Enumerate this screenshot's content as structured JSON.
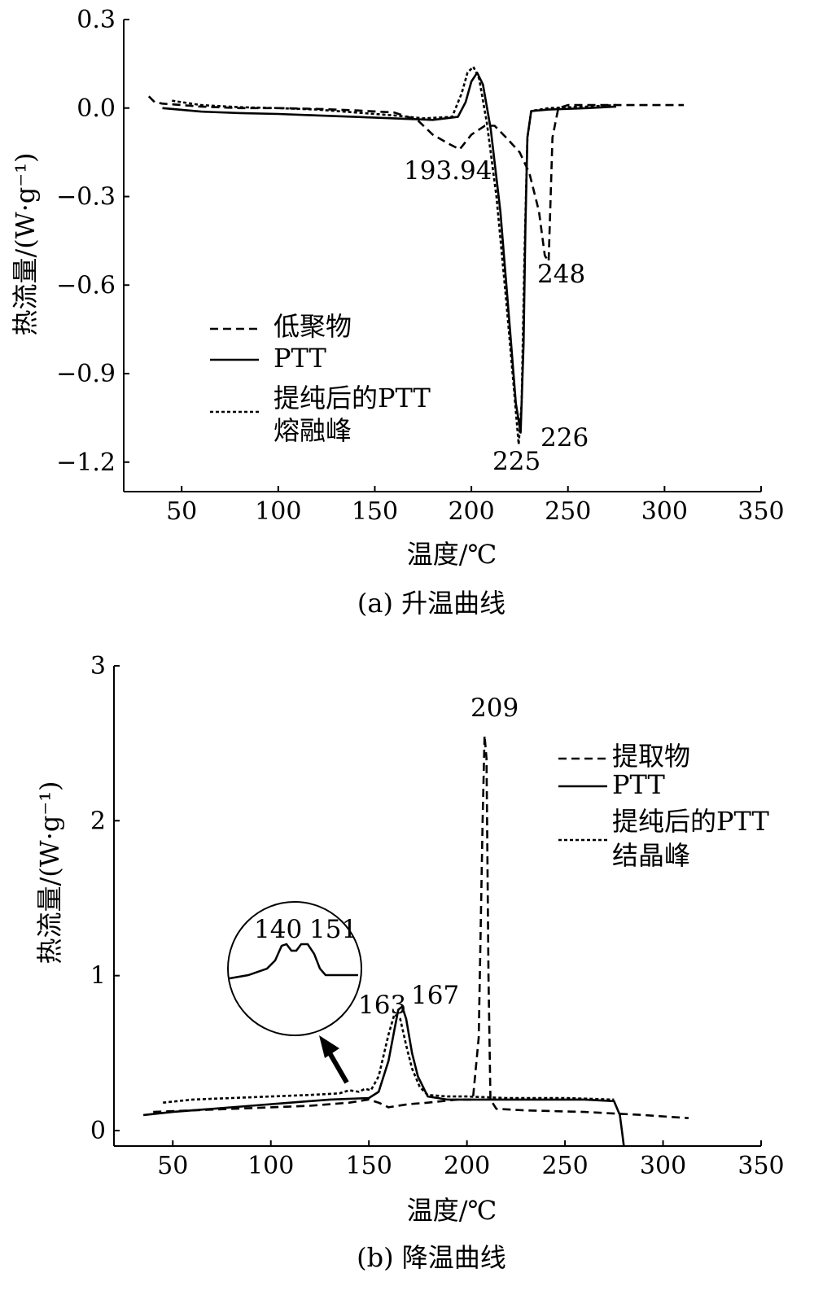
{
  "chart_data": [
    {
      "type": "line",
      "caption": "(a) 升温曲线",
      "xlabel": "温度/℃",
      "ylabel": "热流量/(W·g⁻¹)",
      "xlim": [
        20,
        350
      ],
      "ylim": [
        -1.3,
        0.3
      ],
      "xticks": [
        50,
        100,
        150,
        200,
        250,
        300,
        350
      ],
      "yticks": [
        0.3,
        0.0,
        -0.3,
        -0.6,
        -0.9,
        -1.2
      ],
      "ytick_labels": [
        "0.3",
        "0.0",
        "−0.3",
        "−0.6",
        "−0.9",
        "−1.2"
      ],
      "legend": {
        "position": "left-center",
        "entries": [
          "低聚物",
          "PTT",
          "提纯后的PTT"
        ],
        "note": "熔融峰"
      },
      "series": [
        {
          "name": "低聚物",
          "style": "dashed",
          "x": [
            33,
            36,
            40,
            60,
            80,
            100,
            120,
            140,
            160,
            172,
            180,
            188,
            193.94,
            200,
            207,
            212,
            218,
            225,
            230,
            235,
            238,
            240,
            242,
            245,
            250,
            270,
            290,
            310
          ],
          "y": [
            0.04,
            0.02,
            0.015,
            0.005,
            0.0,
            0.0,
            -0.003,
            -0.008,
            -0.015,
            -0.04,
            -0.09,
            -0.12,
            -0.14,
            -0.09,
            -0.06,
            -0.06,
            -0.1,
            -0.15,
            -0.22,
            -0.35,
            -0.5,
            -0.52,
            -0.1,
            0.0,
            0.01,
            0.01,
            0.01,
            0.01
          ]
        },
        {
          "name": "PTT",
          "style": "solid",
          "x": [
            40,
            60,
            80,
            100,
            120,
            140,
            160,
            180,
            193,
            197,
            200,
            203,
            206,
            210,
            215,
            220,
            223,
            225.5,
            227,
            228,
            229,
            231,
            240,
            260,
            275
          ],
          "y": [
            0.0,
            -0.012,
            -0.017,
            -0.02,
            -0.025,
            -0.03,
            -0.035,
            -0.04,
            -0.03,
            0.02,
            0.09,
            0.12,
            0.08,
            -0.07,
            -0.35,
            -0.75,
            -1.0,
            -1.1,
            -0.8,
            -0.4,
            -0.1,
            -0.01,
            -0.005,
            0.0,
            0.005
          ]
        },
        {
          "name": "提纯后的PTT",
          "style": "dotted",
          "x": [
            45,
            60,
            80,
            100,
            120,
            140,
            160,
            175,
            190,
            195,
            198,
            201,
            204,
            208,
            213,
            218,
            222,
            224.5,
            226,
            227.5,
            229,
            231,
            240,
            260,
            275
          ],
          "y": [
            0.025,
            0.01,
            0.003,
            0.0,
            -0.005,
            -0.015,
            -0.025,
            -0.035,
            -0.03,
            0.05,
            0.12,
            0.14,
            0.1,
            -0.05,
            -0.3,
            -0.65,
            -0.95,
            -1.14,
            -1.0,
            -0.5,
            -0.1,
            -0.01,
            0.0,
            0.005,
            0.01
          ]
        }
      ],
      "annotations": [
        "193.94",
        "248",
        "225",
        "226"
      ]
    },
    {
      "type": "line",
      "caption": "(b) 降温曲线",
      "xlabel": "温度/℃",
      "ylabel": "热流量/(W·g⁻¹)",
      "xlim": [
        20,
        350
      ],
      "ylim": [
        -0.1,
        3
      ],
      "xticks": [
        50,
        100,
        150,
        200,
        250,
        300,
        350
      ],
      "yticks": [
        0,
        1,
        2,
        3
      ],
      "ytick_labels": [
        "0",
        "1",
        "2",
        "3"
      ],
      "legend": {
        "position": "top-right",
        "entries": [
          "提取物",
          "PTT",
          "提纯后的PTT"
        ],
        "note": "结晶峰"
      },
      "series": [
        {
          "name": "提取物",
          "style": "dashed",
          "x": [
            40,
            60,
            80,
            100,
            120,
            140,
            150,
            155,
            160,
            170,
            180,
            195,
            203,
            206,
            208,
            209,
            210,
            211,
            212,
            215,
            230,
            260,
            290,
            313
          ],
          "y": [
            0.12,
            0.13,
            0.14,
            0.15,
            0.16,
            0.18,
            0.2,
            0.18,
            0.15,
            0.17,
            0.18,
            0.2,
            0.2,
            0.6,
            2.0,
            2.55,
            2.4,
            1.0,
            0.2,
            0.14,
            0.13,
            0.12,
            0.1,
            0.08
          ]
        },
        {
          "name": "PTT",
          "style": "solid",
          "x": [
            35,
            50,
            70,
            90,
            110,
            130,
            150,
            155,
            160,
            163,
            165,
            167,
            169,
            172,
            175,
            180,
            190,
            200,
            220,
            240,
            260,
            275,
            278,
            279,
            280
          ],
          "y": [
            0.1,
            0.12,
            0.14,
            0.16,
            0.18,
            0.2,
            0.21,
            0.25,
            0.45,
            0.65,
            0.78,
            0.8,
            0.72,
            0.5,
            0.35,
            0.22,
            0.2,
            0.2,
            0.2,
            0.2,
            0.2,
            0.19,
            0.1,
            0.0,
            -0.1
          ]
        },
        {
          "name": "提纯后的PTT",
          "style": "dotted",
          "x": [
            45,
            60,
            80,
            100,
            120,
            135,
            140,
            145,
            148,
            151,
            155,
            160,
            163,
            166,
            169,
            172,
            176,
            180,
            190,
            200,
            220,
            250,
            275
          ],
          "y": [
            0.18,
            0.2,
            0.21,
            0.22,
            0.23,
            0.24,
            0.26,
            0.25,
            0.27,
            0.26,
            0.35,
            0.62,
            0.75,
            0.72,
            0.55,
            0.4,
            0.28,
            0.23,
            0.22,
            0.22,
            0.21,
            0.21,
            0.2
          ]
        }
      ],
      "annotations": [
        "209",
        "163",
        "167"
      ],
      "inset_labels": [
        "140",
        "151"
      ]
    }
  ]
}
